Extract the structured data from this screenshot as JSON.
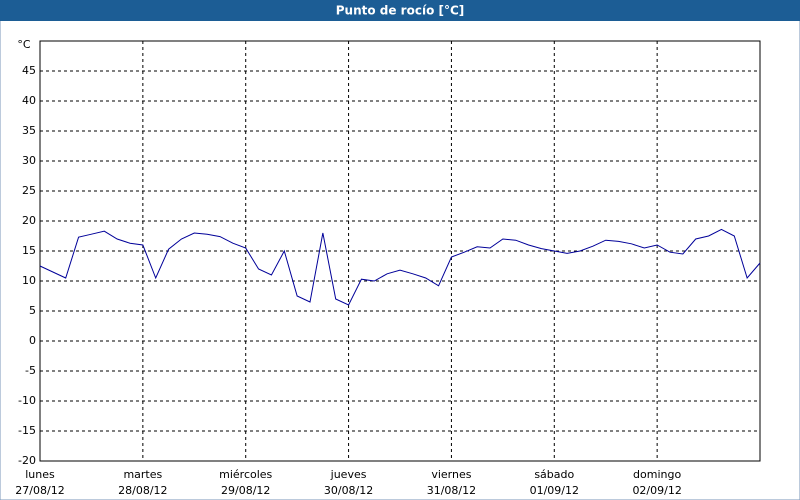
{
  "chart_data": {
    "type": "line",
    "title": "Punto de rocío [°C]",
    "y_unit": "°C",
    "days": [
      {
        "weekday": "lunes",
        "date": "27/08/12"
      },
      {
        "weekday": "martes",
        "date": "28/08/12"
      },
      {
        "weekday": "miércoles",
        "date": "29/08/12"
      },
      {
        "weekday": "jueves",
        "date": "30/08/12"
      },
      {
        "weekday": "viernes",
        "date": "31/08/12"
      },
      {
        "weekday": "sábado",
        "date": "01/09/12"
      },
      {
        "weekday": "domingo",
        "date": "02/09/12"
      }
    ],
    "values": [
      12.5,
      11.5,
      10.5,
      17.3,
      17.8,
      18.3,
      17,
      16.3,
      16,
      10.5,
      15.3,
      17,
      18,
      17.8,
      17.4,
      16.3,
      15.5,
      12,
      11,
      15,
      7.5,
      6.5,
      18,
      7,
      6,
      10.3,
      10,
      11.2,
      11.8,
      11.2,
      10.5,
      9.2,
      14,
      14.8,
      15.7,
      15.5,
      17,
      16.8,
      16,
      15.4,
      15,
      14.6,
      15,
      15.8,
      16.8,
      16.6,
      16.2,
      15.5,
      16,
      14.8,
      14.5,
      17,
      17.5,
      18.6,
      17.5,
      10.5,
      13
    ],
    "color": "#000099",
    "ylim": [
      -20,
      50
    ],
    "yticks": [
      -20,
      -15,
      -10,
      -5,
      0,
      5,
      10,
      15,
      20,
      25,
      30,
      35,
      40,
      45
    ],
    "grid": true
  }
}
